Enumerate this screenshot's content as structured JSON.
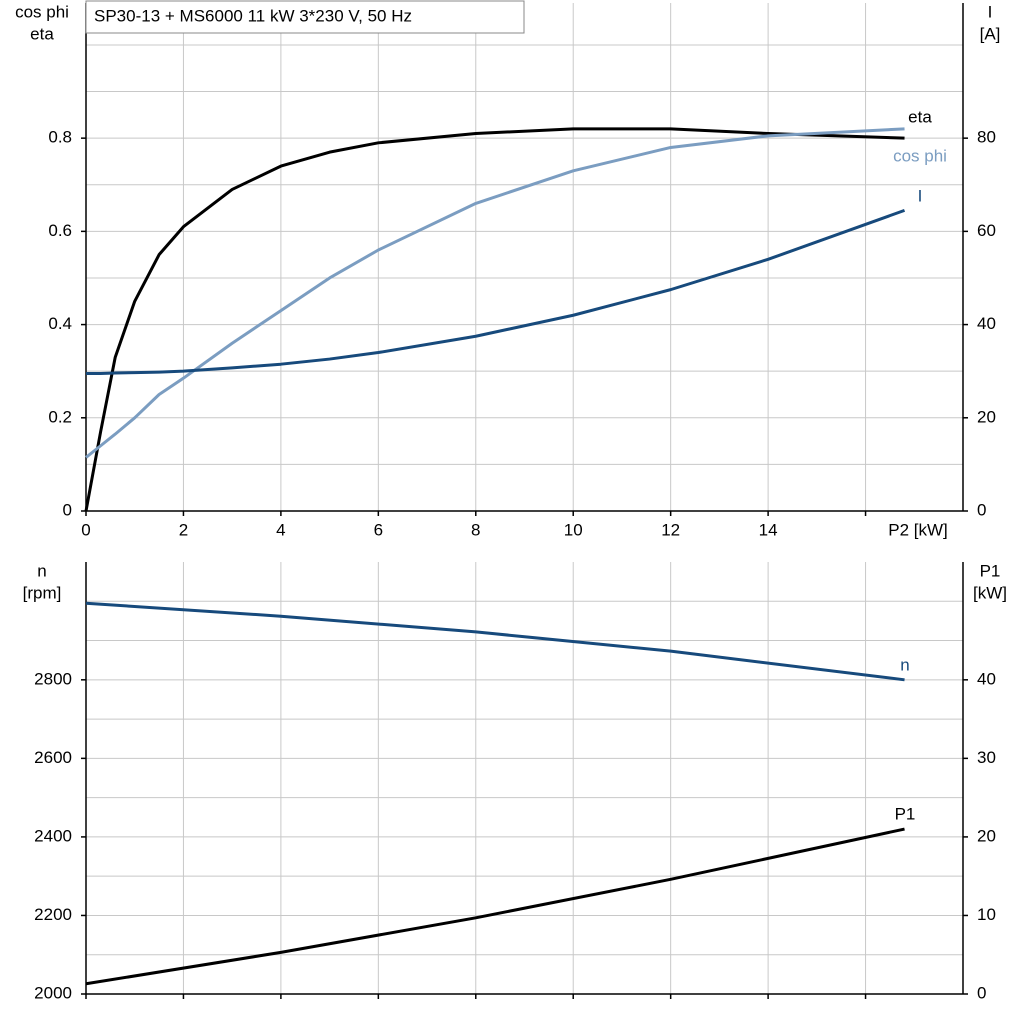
{
  "chart_data": [
    {
      "type": "line",
      "title": "SP30-13 + MS6000   11 kW   3*230 V, 50 Hz",
      "ylabel": [
        "cos phi",
        "eta"
      ],
      "y2label": [
        "I",
        "[A]"
      ],
      "xlabel": "P2 [kW]",
      "x": [
        0,
        0.3,
        0.6,
        1,
        1.5,
        2,
        3,
        4,
        5,
        6,
        8,
        10,
        12,
        14,
        16.8
      ],
      "series": [
        {
          "name": "eta",
          "color": "#000000",
          "values": [
            0,
            0.17,
            0.33,
            0.45,
            0.55,
            0.61,
            0.69,
            0.74,
            0.77,
            0.79,
            0.81,
            0.82,
            0.82,
            0.81,
            0.8
          ]
        },
        {
          "name": "cos phi",
          "color": "#7b9dc1",
          "values": [
            0.115,
            0.14,
            0.165,
            0.2,
            0.25,
            0.285,
            0.36,
            0.43,
            0.5,
            0.56,
            0.66,
            0.73,
            0.78,
            0.805,
            0.82
          ]
        },
        {
          "name": "I",
          "color": "#174a7c",
          "axis": "y2",
          "values": [
            29.5,
            29.5,
            29.6,
            29.7,
            29.8,
            30,
            30.7,
            31.5,
            32.6,
            34,
            37.5,
            42,
            47.5,
            54,
            64.5
          ]
        }
      ],
      "xlim": [
        0,
        18
      ],
      "xticks": [
        0,
        2,
        4,
        6,
        8,
        10,
        12,
        14,
        {
          "value": 16,
          "label": null
        }
      ],
      "ylim": [
        0,
        1.09
      ],
      "yticks": [
        0,
        {
          "value": 0.2,
          "label": "0.2"
        },
        {
          "value": 0.4,
          "label": "0.4"
        },
        {
          "value": 0.6,
          "label": "0.6"
        },
        {
          "value": 0.8,
          "label": "0.8"
        }
      ],
      "yticks_labels_fixed": null,
      "yminorticks": [
        0.1,
        0.3,
        0.5,
        0.7,
        0.9,
        1.0
      ],
      "y2lim": [
        0,
        109
      ],
      "y2ticks": [
        0,
        20,
        40,
        60,
        80
      ],
      "grid": true
    },
    {
      "type": "line",
      "ylabel": [
        "n",
        "[rpm]"
      ],
      "y2label": [
        "P1",
        "[kW]"
      ],
      "x": [
        0,
        4,
        8,
        12,
        16.8
      ],
      "series": [
        {
          "name": "n",
          "color": "#174a7c",
          "values": [
            2995,
            2962,
            2922,
            2873,
            2800
          ]
        },
        {
          "name": "P1",
          "color": "#000000",
          "axis": "y2",
          "values": [
            1.3,
            5.3,
            9.7,
            14.6,
            21
          ]
        }
      ],
      "xlim": [
        0,
        18
      ],
      "xticks": [
        {
          "value": 0,
          "label": null
        },
        {
          "value": 2,
          "label": null
        },
        {
          "value": 4,
          "label": null
        },
        {
          "value": 6,
          "label": null
        },
        {
          "value": 8,
          "label": null
        },
        {
          "value": 10,
          "label": null
        },
        {
          "value": 12,
          "label": null
        },
        {
          "value": 14,
          "label": null
        },
        {
          "value": 16,
          "label": null
        }
      ],
      "ylim": [
        2000,
        3100
      ],
      "yticks": [
        2000,
        2200,
        2400,
        2600,
        2800
      ],
      "yminorticks": [
        2100,
        2300,
        2500,
        2700,
        2900,
        3000
      ],
      "y2lim": [
        0,
        55
      ],
      "y2ticks": [
        0,
        10,
        20,
        30,
        40
      ],
      "grid": true
    }
  ]
}
